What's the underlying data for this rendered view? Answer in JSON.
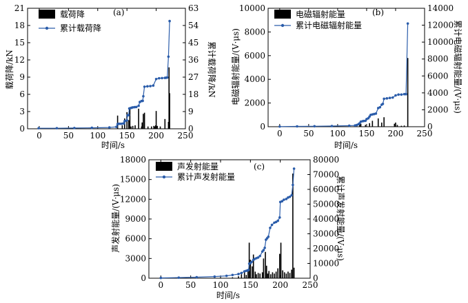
{
  "chart_data": [
    {
      "type": "bar+line",
      "panel_label": "(a)",
      "xlabel": "时间/s",
      "ylabel_left": "载荷降/kN",
      "ylabel_right": "累计载荷降/kN",
      "xlim": [
        -20,
        250
      ],
      "xticks": [
        0,
        50,
        100,
        150,
        200,
        250
      ],
      "ylim_left": [
        0,
        21
      ],
      "yticks_left": [
        0,
        3,
        6,
        9,
        12,
        15,
        18,
        21
      ],
      "ylim_right": [
        0,
        63
      ],
      "yticks_right": [
        0,
        9,
        18,
        27,
        36,
        45,
        54,
        63
      ],
      "legend": [
        "载荷降",
        "累计载荷降"
      ],
      "legend_position": "top-left",
      "bar_color": "#000000",
      "line_color": "#2a5caa",
      "bars": {
        "x": [
          -0.5,
          120,
          134,
          142,
          146,
          150,
          153,
          155,
          157,
          160,
          164,
          170,
          175,
          176,
          178,
          180,
          186,
          192,
          196,
          198,
          199,
          200,
          202,
          207,
          215,
          221,
          222,
          223
        ],
        "values": [
          0.3,
          0.2,
          2.3,
          0.6,
          1.8,
          2.9,
          1.5,
          3.5,
          0.4,
          0.5,
          0.6,
          3.5,
          0.4,
          1.1,
          2.6,
          2.8,
          0.4,
          0.4,
          0.5,
          0.4,
          0.6,
          3.1,
          0.5,
          0.4,
          1.7,
          1.2,
          10.7,
          6.2
        ]
      },
      "series": [
        {
          "name": "累计载荷降",
          "x": [
            -1,
            30,
            60,
            90,
            120,
            132,
            134,
            135,
            137,
            140,
            143,
            145,
            146,
            147,
            150,
            151,
            152,
            153,
            154,
            156,
            158,
            160,
            163,
            166,
            170,
            172,
            175,
            177,
            178,
            180,
            185,
            190,
            195,
            200,
            205,
            210,
            215,
            217,
            219,
            221,
            223
          ],
          "values": [
            0.3,
            0.3,
            0.4,
            0.5,
            0.7,
            1.0,
            2.4,
            2.6,
            2.6,
            2.6,
            2.7,
            2.9,
            4.0,
            4.1,
            4.4,
            7.0,
            7.1,
            7.2,
            10.6,
            10.8,
            11.0,
            11.2,
            11.3,
            11.4,
            12.0,
            14.0,
            14.5,
            14.6,
            17.0,
            22.0,
            22.2,
            22.3,
            22.6,
            26.0,
            26.4,
            26.5,
            26.6,
            26.7,
            26.8,
            37.7,
            56.3
          ]
        }
      ]
    },
    {
      "type": "bar+line",
      "panel_label": "(b)",
      "xlabel": "时间/s",
      "ylabel_left": "电磁辐射能量/(V·μs)",
      "ylabel_right": "累计电磁辐射能量/(V·μs)",
      "xlim": [
        -20,
        250
      ],
      "xticks": [
        0,
        50,
        100,
        150,
        200,
        250
      ],
      "ylim_left": [
        0,
        10000
      ],
      "yticks_left": [
        0,
        2000,
        4000,
        6000,
        8000,
        10000
      ],
      "ylim_right": [
        0,
        14000
      ],
      "yticks_right": [
        0,
        2000,
        4000,
        6000,
        8000,
        10000,
        12000,
        14000
      ],
      "legend": [
        "电磁辐射能量",
        "累计电磁辐射能量"
      ],
      "legend_position": "top-left",
      "bar_color": "#000000",
      "line_color": "#2a5caa",
      "bars": {
        "x": [
          0,
          40,
          80,
          130,
          138,
          140,
          148,
          155,
          160,
          170,
          176,
          180,
          198,
          200,
          203,
          210,
          215,
          221
        ],
        "values": [
          50,
          30,
          30,
          40,
          200,
          250,
          150,
          300,
          500,
          700,
          350,
          800,
          250,
          350,
          150,
          80,
          100,
          5800
        ]
      },
      "series": [
        {
          "name": "累计电磁辐射能量",
          "x": [
            0,
            30,
            60,
            90,
            120,
            130,
            133,
            136,
            138,
            140,
            143,
            145,
            148,
            150,
            153,
            155,
            157,
            160,
            163,
            166,
            170,
            173,
            176,
            178,
            180,
            185,
            190,
            195,
            200,
            205,
            210,
            215,
            218,
            221
          ],
          "values": [
            20,
            40,
            60,
            80,
            120,
            150,
            200,
            300,
            400,
            600,
            650,
            680,
            700,
            900,
            1000,
            1200,
            1400,
            1450,
            1500,
            1550,
            2200,
            2300,
            2600,
            2700,
            3300,
            3350,
            3400,
            3450,
            3700,
            3800,
            3800,
            3850,
            3850,
            12200
          ]
        }
      ]
    },
    {
      "type": "bar+line",
      "panel_label": "(c)",
      "xlabel": "时间/s",
      "ylabel_left": "声发射能量/(V·μs)",
      "ylabel_right": "累计声发射能量/(V·μs)",
      "xlim": [
        -20,
        250
      ],
      "xticks": [
        0,
        50,
        100,
        150,
        200,
        250
      ],
      "ylim_left": [
        0,
        18000
      ],
      "yticks_left": [
        0,
        3000,
        6000,
        9000,
        12000,
        15000,
        18000
      ],
      "ylim_right": [
        0,
        80000
      ],
      "yticks_right": [
        0,
        10000,
        20000,
        30000,
        40000,
        50000,
        60000,
        70000,
        80000
      ],
      "legend": [
        "声发射能量",
        "累计声发射能量"
      ],
      "legend_position": "top-left",
      "bar_color": "#000000",
      "line_color": "#2a5caa",
      "bars": {
        "x": [
          20,
          60,
          100,
          120,
          130,
          135,
          140,
          143,
          146,
          148,
          150,
          153,
          155,
          158,
          160,
          163,
          166,
          170,
          172,
          175,
          177,
          179,
          181,
          184,
          187,
          190,
          193,
          196,
          199,
          201,
          204,
          207,
          210,
          213,
          216,
          219,
          221,
          223
        ],
        "values": [
          50,
          80,
          100,
          150,
          300,
          600,
          900,
          500,
          1200,
          5400,
          2800,
          1800,
          3600,
          1000,
          600,
          800,
          700,
          900,
          3000,
          4000,
          1900,
          700,
          1100,
          600,
          900,
          700,
          1000,
          1500,
          3700,
          5400,
          1200,
          900,
          700,
          1000,
          800,
          1300,
          15900,
          1600
        ]
      },
      "series": [
        {
          "name": "累计声发射能量",
          "x": [
            0,
            30,
            60,
            90,
            110,
            120,
            130,
            135,
            140,
            143,
            145,
            147,
            148,
            150,
            152,
            155,
            157,
            160,
            163,
            166,
            170,
            172,
            174,
            176,
            178,
            180,
            183,
            186,
            190,
            193,
            196,
            199,
            200,
            203,
            206,
            210,
            213,
            216,
            219,
            221,
            223
          ],
          "values": [
            200,
            400,
            700,
            1100,
            1600,
            2200,
            2800,
            3500,
            4600,
            5000,
            5200,
            5600,
            9800,
            10200,
            11000,
            12400,
            13000,
            13500,
            14000,
            15000,
            18000,
            19000,
            20500,
            26000,
            27000,
            28000,
            34000,
            36000,
            37500,
            38000,
            38800,
            41000,
            51500,
            52000,
            53000,
            53500,
            54500,
            55000,
            56000,
            63000,
            74000
          ]
        }
      ]
    }
  ]
}
